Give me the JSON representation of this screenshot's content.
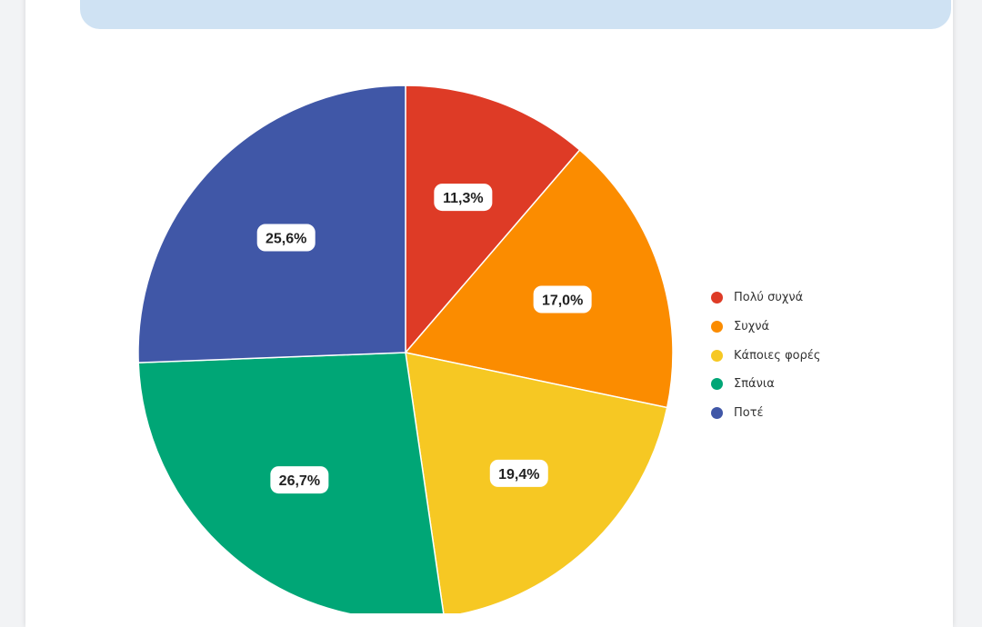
{
  "banner": {
    "title": ""
  },
  "chart_data": {
    "type": "pie",
    "categories": [
      "Πολύ συχνά",
      "Συχνά",
      "Κάποιες φορές",
      "Σπάνια",
      "Ποτέ"
    ],
    "values": [
      11.3,
      17.0,
      19.4,
      26.7,
      25.6
    ],
    "value_labels": [
      "11,3%",
      "17,0%",
      "19,4%",
      "26,7%",
      "25,6%"
    ],
    "colors": [
      "#de3b26",
      "#fb8c00",
      "#f6c823",
      "#00a676",
      "#4057a7"
    ],
    "legend_position": "right",
    "start_angle": "top, clockwise"
  }
}
